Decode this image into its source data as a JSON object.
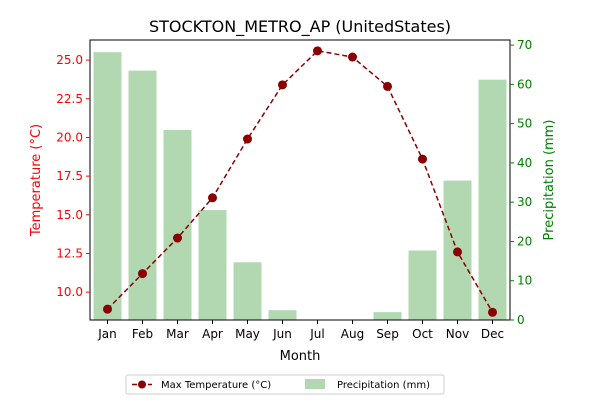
{
  "chart_data": {
    "type": "bar+line",
    "title": "STOCKTON_METRO_AP (UnitedStates)",
    "xlabel": "Month",
    "categories": [
      "Jan",
      "Feb",
      "Mar",
      "Apr",
      "May",
      "Jun",
      "Jul",
      "Aug",
      "Sep",
      "Oct",
      "Nov",
      "Dec"
    ],
    "left_axis": {
      "label": "Temperature (°C)",
      "color": "#ff0000",
      "ylim": [
        8.2,
        26.3
      ],
      "ticks": [
        "10.0",
        "12.5",
        "15.0",
        "17.5",
        "20.0",
        "22.5",
        "25.0"
      ]
    },
    "right_axis": {
      "label": "Precipitation (mm)",
      "color": "#008000",
      "ylim": [
        0,
        71.3
      ],
      "ticks": [
        "0",
        "10",
        "20",
        "30",
        "40",
        "50",
        "60",
        "70"
      ]
    },
    "series": [
      {
        "name": "Max Temperature (°C)",
        "kind": "line",
        "axis": "left",
        "color": "#8b0000",
        "values": [
          8.9,
          11.2,
          13.5,
          16.1,
          19.9,
          23.4,
          25.6,
          25.2,
          23.3,
          18.6,
          12.6,
          8.7
        ]
      },
      {
        "name": "Precipitation (mm)",
        "kind": "bar",
        "axis": "right",
        "color": "#b2d8b2",
        "values": [
          68.2,
          63.5,
          48.4,
          28.0,
          14.7,
          2.5,
          0.0,
          0.0,
          2.0,
          17.7,
          35.5,
          61.2
        ]
      }
    ],
    "legend": "bottom-center",
    "grid": false
  }
}
